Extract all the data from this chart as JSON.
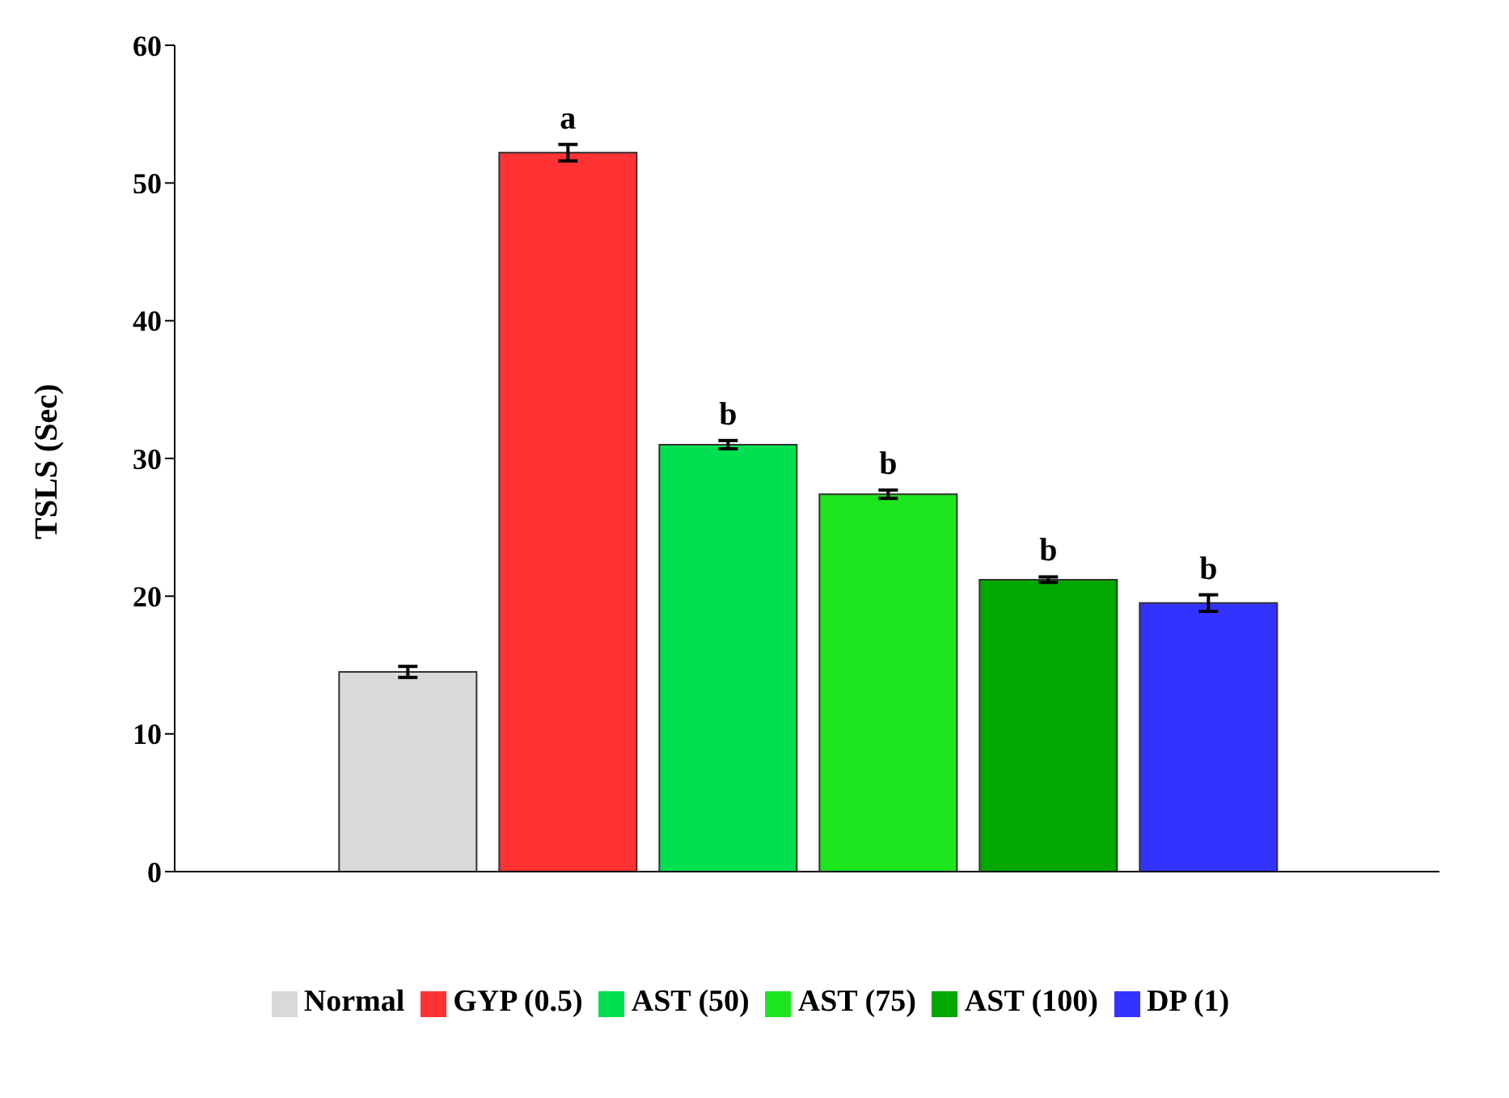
{
  "chart_data": {
    "type": "bar",
    "ylabel": "TSLS (Sec)",
    "categories": [
      null
    ],
    "series": [
      {
        "name": "Normal",
        "color": "#d9d9d9",
        "values": [
          14.5
        ],
        "errors": [
          0.4
        ]
      },
      {
        "name": "GYP (0.5)",
        "color": "#ff3333",
        "values": [
          52.2
        ],
        "errors": [
          0.6
        ]
      },
      {
        "name": "AST (50)",
        "color": "#00e050",
        "values": [
          31.0
        ],
        "errors": [
          0.3
        ]
      },
      {
        "name": "AST (75)",
        "color": "#1ee61e",
        "values": [
          27.4
        ],
        "errors": [
          0.3
        ]
      },
      {
        "name": "AST (100)",
        "color": "#00a800",
        "values": [
          21.2
        ],
        "errors": [
          0.2
        ]
      },
      {
        "name": "DP (1)",
        "color": "#3333ff",
        "values": [
          19.5
        ],
        "errors": [
          0.6
        ]
      }
    ],
    "annotations": [
      "a",
      "b",
      "b",
      "b",
      "b"
    ],
    "ylim": [
      0,
      60
    ],
    "yticks": [
      0,
      10,
      20,
      30,
      40,
      50,
      60
    ],
    "grid": false,
    "legend": "bottom"
  }
}
